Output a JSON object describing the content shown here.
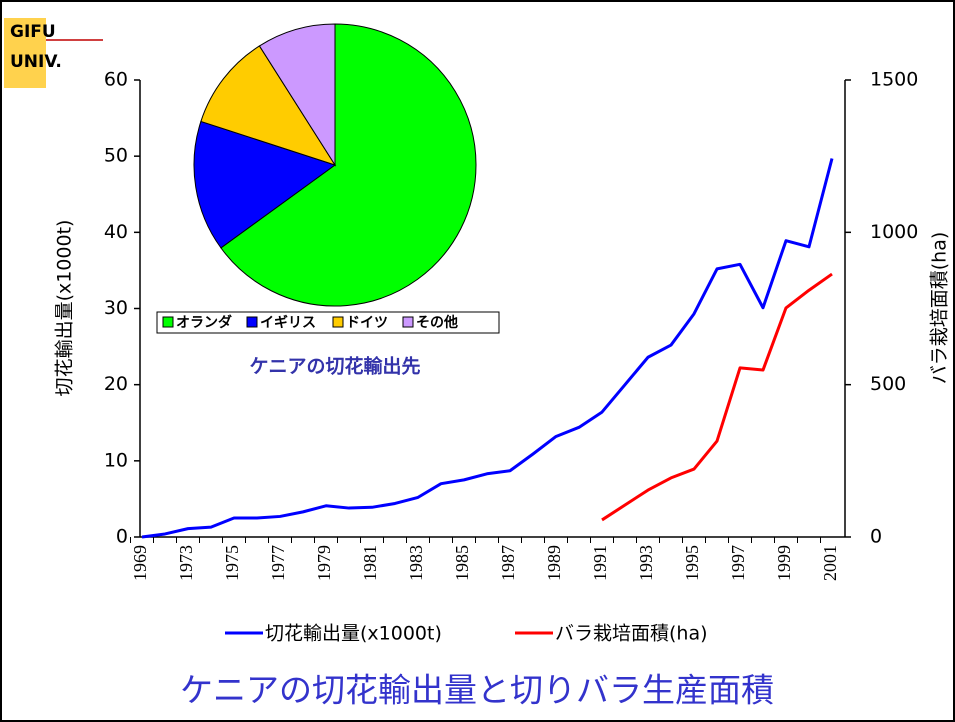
{
  "logo": {
    "line1": "GIFU",
    "line2": "UNIV."
  },
  "chart_data": [
    {
      "type": "line",
      "title": "ケニアの切花輸出量と切りバラ生産面積",
      "y_label": "切花輸出量(x1000t)",
      "y2_label": "バラ栽培面積(ha)",
      "categories": [
        "1969",
        null,
        "1973",
        null,
        "1975",
        null,
        "1977",
        null,
        "1979",
        null,
        "1981",
        null,
        "1983",
        null,
        "1985",
        null,
        "1987",
        null,
        "1989",
        null,
        "1991",
        null,
        "1993",
        null,
        "1995",
        null,
        "1997",
        null,
        "1999",
        null,
        "2001"
      ],
      "series": [
        {
          "name": "切花輸出量(x1000t)",
          "color": "#0000ff",
          "axis": "y",
          "values": [
            0,
            0.4,
            1.1,
            1.3,
            2.5,
            2.5,
            2.7,
            3.3,
            4.1,
            3.8,
            3.9,
            4.4,
            5.2,
            7.0,
            7.5,
            8.3,
            8.7,
            10.9,
            13.2,
            14.4,
            16.4,
            20.0,
            23.6,
            25.2,
            29.3,
            35.2,
            35.8,
            30.1,
            38.9,
            38.1,
            49.7
          ]
        },
        {
          "name": "バラ栽培面積(ha)",
          "color": "#ff0000",
          "axis": "y2",
          "values": [
            null,
            null,
            null,
            null,
            null,
            null,
            null,
            null,
            null,
            null,
            null,
            null,
            null,
            null,
            null,
            null,
            null,
            null,
            null,
            null,
            56,
            105,
            154,
            194,
            223,
            315,
            555,
            548,
            752,
            810,
            863
          ]
        }
      ],
      "ylim": [
        0,
        60
      ],
      "yticks": [
        0,
        10,
        20,
        30,
        40,
        50,
        60
      ],
      "y2lim": [
        0,
        1500
      ],
      "y2ticks": [
        0,
        500,
        1000,
        1500
      ],
      "legend": "bottom"
    },
    {
      "type": "pie",
      "title": "ケニアの切花輸出先",
      "categories": [
        "オランダ",
        "イギリス",
        "ドイツ",
        "その他"
      ],
      "values": [
        65,
        15,
        11,
        9
      ],
      "colors": [
        "#00ff00",
        "#0000ff",
        "#ffcc00",
        "#cc99ff"
      ],
      "legend": "bottom"
    }
  ]
}
